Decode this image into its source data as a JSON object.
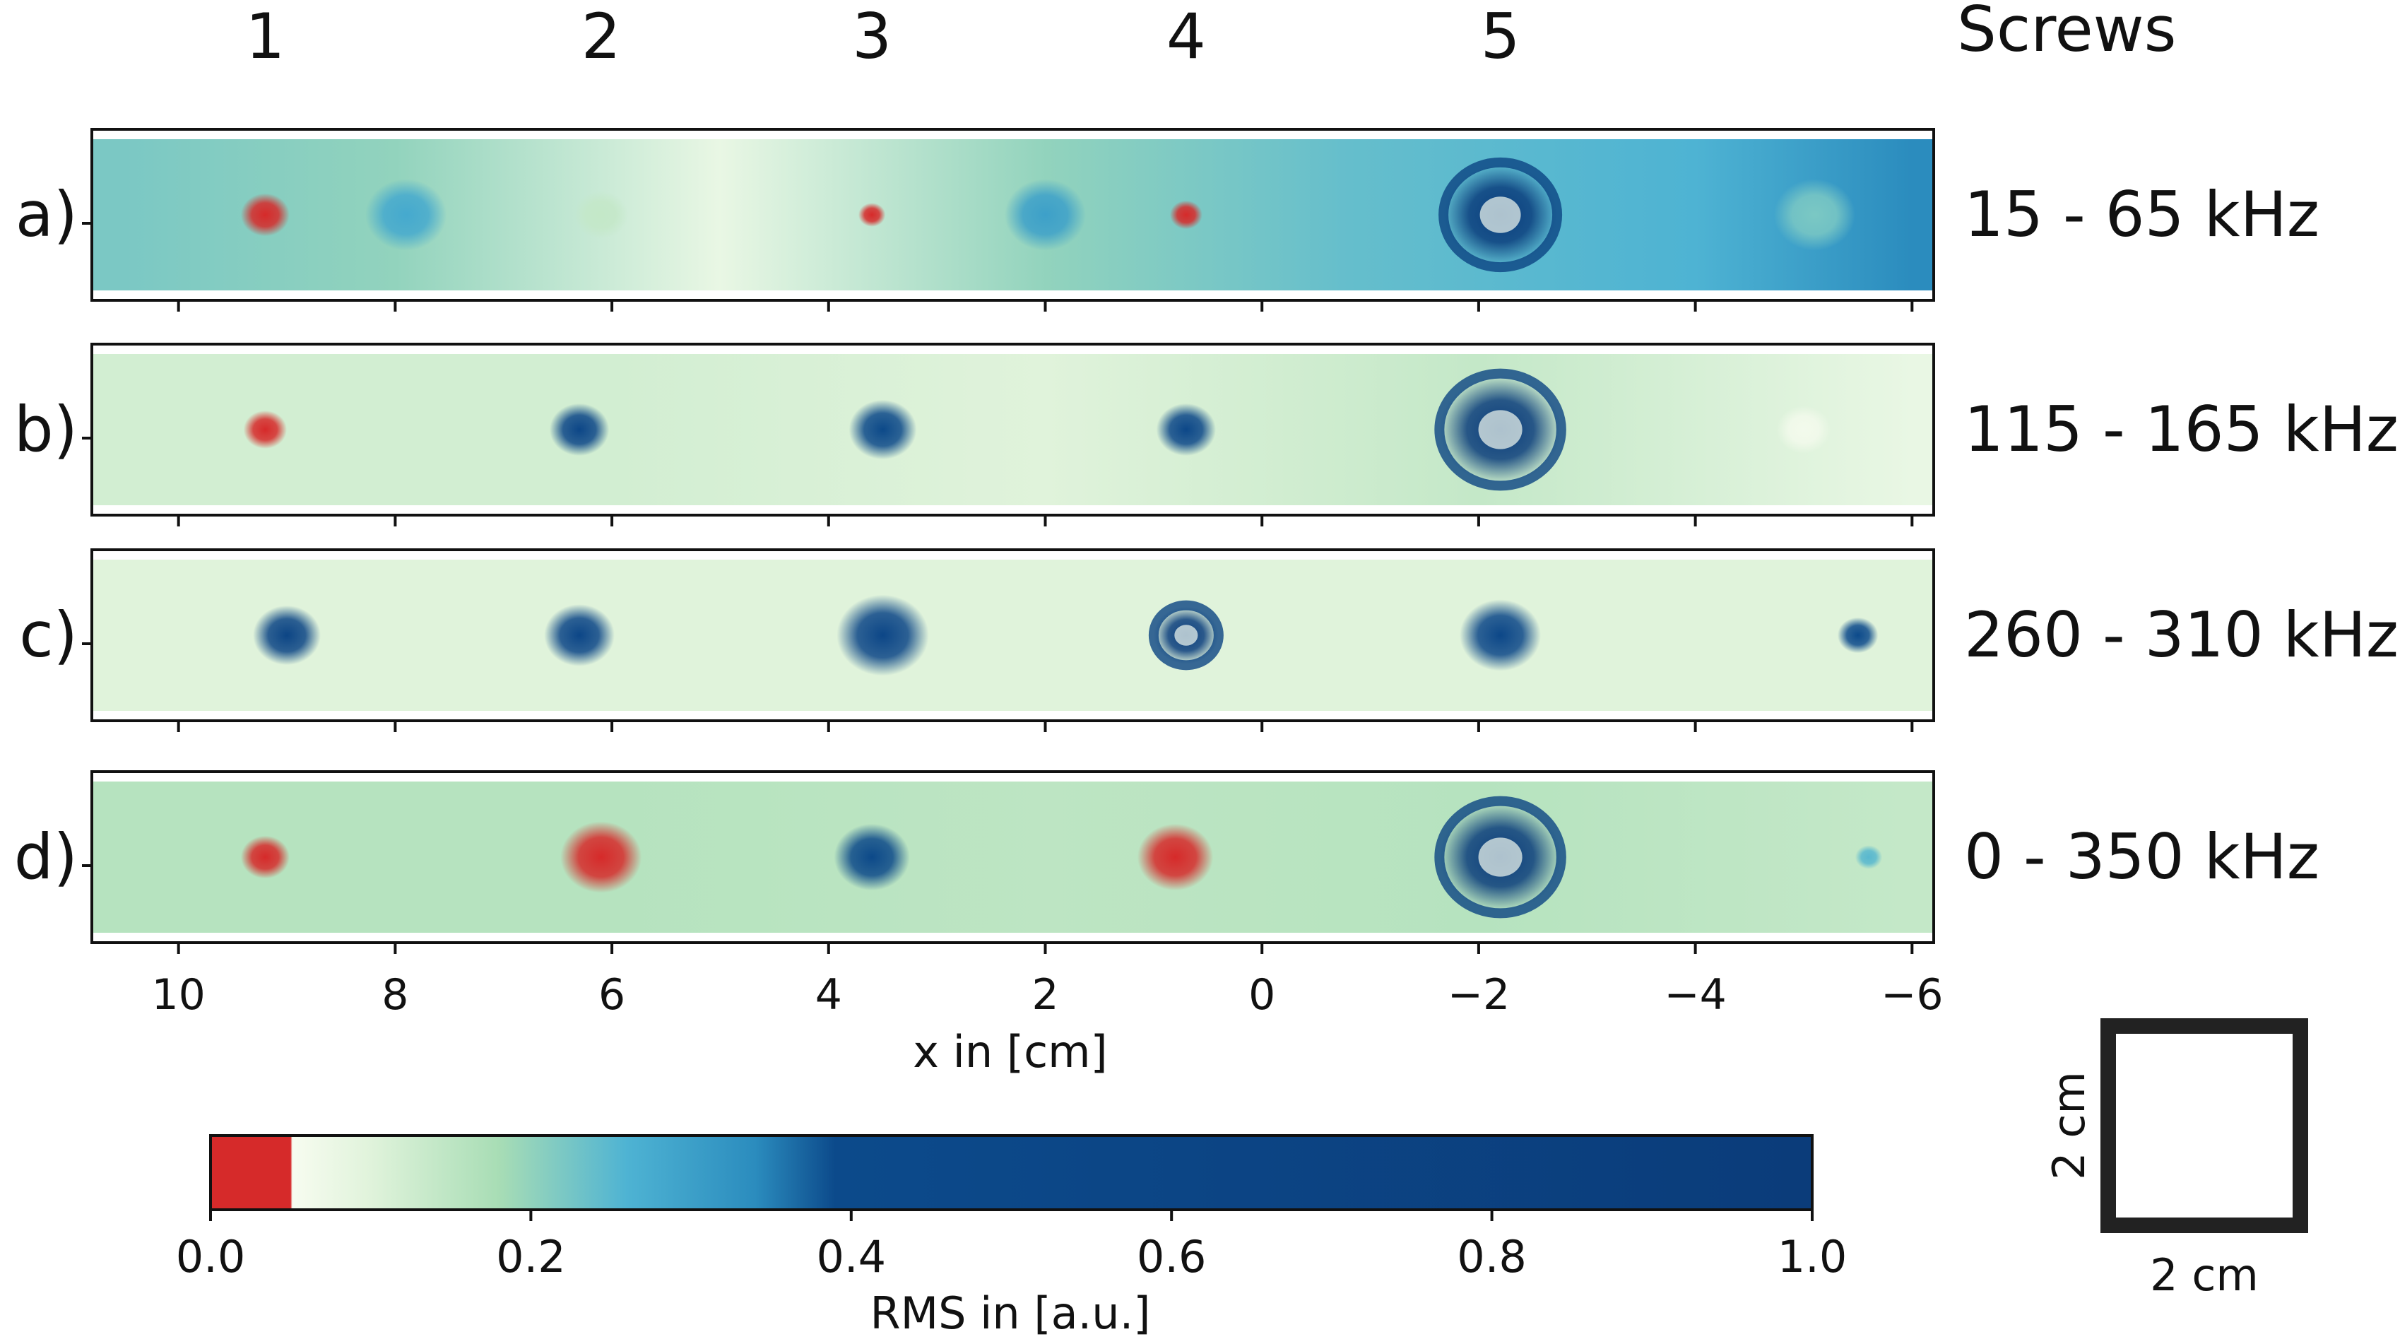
{
  "chart_data": {
    "type": "heatmap",
    "title": "",
    "xlabel": "x in [cm]",
    "xlim": [
      10.8,
      -6.2
    ],
    "x_ticks": [
      10,
      8,
      6,
      4,
      2,
      0,
      -2,
      -4,
      -6
    ],
    "x_tick_labels": [
      "10",
      "8",
      "6",
      "4",
      "2",
      "0",
      "−2",
      "−4",
      "−6"
    ],
    "screws_header": "Screws",
    "screws": [
      {
        "label": "1",
        "x": 9.2
      },
      {
        "label": "2",
        "x": 6.1
      },
      {
        "label": "3",
        "x": 3.6
      },
      {
        "label": "4",
        "x": 0.7
      },
      {
        "label": "5",
        "x": -2.2
      }
    ],
    "panels": [
      {
        "label": "a)",
        "band": "15 - 65 kHz",
        "spots": [
          {
            "x": 9.2,
            "rms": 0.0,
            "r": 0.18
          },
          {
            "x": 6.1,
            "rms": 0.14,
            "r": 0.2
          },
          {
            "x": 3.6,
            "rms": 0.02,
            "r": 0.1
          },
          {
            "x": 0.7,
            "rms": 0.03,
            "r": 0.12
          },
          {
            "x": -2.2,
            "rms": 0.9,
            "r": 0.42
          },
          {
            "x": 7.9,
            "rms": 0.28,
            "r": 0.3
          },
          {
            "x": 2.0,
            "rms": 0.3,
            "r": 0.3
          },
          {
            "x": -5.1,
            "rms": 0.22,
            "r": 0.3
          }
        ],
        "bg": [
          {
            "x": 10.5,
            "rms": 0.22
          },
          {
            "x": 8.0,
            "rms": 0.2
          },
          {
            "x": 5.0,
            "rms": 0.08
          },
          {
            "x": 2.0,
            "rms": 0.2
          },
          {
            "x": -0.8,
            "rms": 0.24
          },
          {
            "x": -4.0,
            "rms": 0.26
          },
          {
            "x": -6.0,
            "rms": 0.34
          }
        ]
      },
      {
        "label": "b)",
        "band": "115 - 165 kHz",
        "spots": [
          {
            "x": 9.2,
            "rms": 0.0,
            "r": 0.16
          },
          {
            "x": 6.3,
            "rms": 0.55,
            "r": 0.22
          },
          {
            "x": 3.5,
            "rms": 0.45,
            "r": 0.25
          },
          {
            "x": 0.7,
            "rms": 0.5,
            "r": 0.22
          },
          {
            "x": -2.2,
            "rms": 0.95,
            "r": 0.45
          },
          {
            "x": -5.0,
            "rms": 0.06,
            "r": 0.2
          }
        ],
        "bg": [
          {
            "x": 10.5,
            "rms": 0.12
          },
          {
            "x": 6.0,
            "rms": 0.12
          },
          {
            "x": 2.0,
            "rms": 0.1
          },
          {
            "x": -2.0,
            "rms": 0.14
          },
          {
            "x": -6.0,
            "rms": 0.08
          }
        ]
      },
      {
        "label": "c)",
        "band": "260 - 310 kHz",
        "spots": [
          {
            "x": 9.0,
            "rms": 0.6,
            "r": 0.25
          },
          {
            "x": 6.3,
            "rms": 0.55,
            "r": 0.26
          },
          {
            "x": 3.5,
            "rms": 0.55,
            "r": 0.34
          },
          {
            "x": 0.7,
            "rms": 0.9,
            "r": 0.24
          },
          {
            "x": -2.2,
            "rms": 0.5,
            "r": 0.3
          },
          {
            "x": -5.5,
            "rms": 0.4,
            "r": 0.15
          }
        ],
        "bg": [
          {
            "x": 10.5,
            "rms": 0.1
          },
          {
            "x": 6.0,
            "rms": 0.1
          },
          {
            "x": 2.0,
            "rms": 0.1
          },
          {
            "x": -2.0,
            "rms": 0.1
          },
          {
            "x": -6.0,
            "rms": 0.1
          }
        ]
      },
      {
        "label": "d)",
        "band": "0 - 350 kHz",
        "spots": [
          {
            "x": 9.2,
            "rms": 0.0,
            "r": 0.18
          },
          {
            "x": 6.1,
            "rms": 0.0,
            "r": 0.3
          },
          {
            "x": 3.6,
            "rms": 0.45,
            "r": 0.28
          },
          {
            "x": 0.8,
            "rms": 0.0,
            "r": 0.28
          },
          {
            "x": -2.2,
            "rms": 0.95,
            "r": 0.45
          },
          {
            "x": -5.6,
            "rms": 0.25,
            "r": 0.1
          }
        ],
        "bg": [
          {
            "x": 10.5,
            "rms": 0.16
          },
          {
            "x": 6.0,
            "rms": 0.16
          },
          {
            "x": 2.0,
            "rms": 0.15
          },
          {
            "x": -2.0,
            "rms": 0.16
          },
          {
            "x": -6.0,
            "rms": 0.14
          }
        ]
      }
    ],
    "colorbar": {
      "label": "RMS in [a.u.]",
      "range": [
        0.0,
        1.0
      ],
      "ticks": [
        0.0,
        0.2,
        0.4,
        0.6,
        0.8,
        1.0
      ],
      "tick_labels": [
        "0.0",
        "0.2",
        "0.4",
        "0.6",
        "0.8",
        "1.0"
      ],
      "stops": [
        {
          "v": 0.0,
          "color": "#d62a2a"
        },
        {
          "v": 0.05,
          "color": "#d62a2a"
        },
        {
          "v": 0.051,
          "color": "#f7fcf0"
        },
        {
          "v": 0.1,
          "color": "#e0f3db"
        },
        {
          "v": 0.18,
          "color": "#a8ddb5"
        },
        {
          "v": 0.26,
          "color": "#4eb3d3"
        },
        {
          "v": 0.34,
          "color": "#2b8cbe"
        },
        {
          "v": 0.39,
          "color": "#0c4a8b"
        },
        {
          "v": 1.0,
          "color": "#0b3c7a"
        }
      ]
    },
    "scale_box": {
      "horizontal": "2 cm",
      "vertical": "2 cm"
    }
  }
}
